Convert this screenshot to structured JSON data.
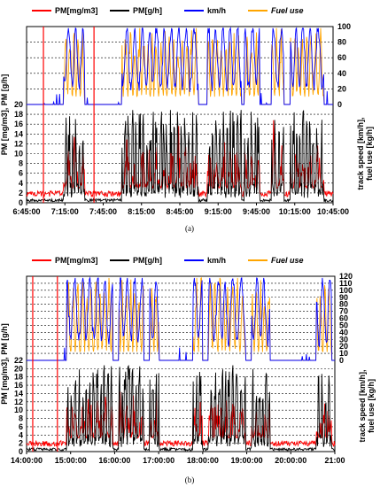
{
  "chart_data": [
    {
      "id": "a",
      "type": "line",
      "caption": "(a)",
      "legend": {
        "placement": "top",
        "entries": [
          "PM[mg/m3]",
          "PM[g/h]",
          "km/h",
          "Fuel use"
        ]
      },
      "colors": {
        "pm_mgm3": "#ff0000",
        "pm_gh": "#000000",
        "kmh": "#0000ff",
        "fuel": "#ffa500"
      },
      "ylabel_left": "PM [mg/m3], PM [g/h]",
      "ylabel_right": "track speed [km/h], fuel use [kg/h]",
      "x_ticks": [
        "6:45:00",
        "7:15:00",
        "7:45:00",
        "8:15:00",
        "8:45:00",
        "9:15:00",
        "9:45:00",
        "10:15:00",
        "10:45:00"
      ],
      "y_left_ticks": [
        "0",
        "2",
        "4",
        "6",
        "8",
        "10",
        "12",
        "14",
        "16",
        "18",
        "20"
      ],
      "y_right_ticks": [
        "0",
        "20",
        "40",
        "60",
        "80",
        "100"
      ],
      "y_left_range": [
        0,
        20
      ],
      "y_right_range": [
        0,
        100
      ],
      "grid": true,
      "seed": 11,
      "driving_windows": [
        [
          0.12,
          0.19
        ],
        [
          0.31,
          0.56
        ],
        [
          0.59,
          0.7
        ],
        [
          0.71,
          0.76
        ],
        [
          0.8,
          0.84
        ],
        [
          0.86,
          0.97
        ]
      ],
      "spikes_red": [
        0.055,
        0.22
      ]
    },
    {
      "id": "b",
      "type": "line",
      "caption": "(b)",
      "legend": {
        "placement": "top",
        "entries": [
          "PM[mg/m3]",
          "PM[g/h]",
          "km/h",
          "Fuel use"
        ]
      },
      "colors": {
        "pm_mgm3": "#ff0000",
        "pm_gh": "#000000",
        "kmh": "#0000ff",
        "fuel": "#ffa500"
      },
      "ylabel_left": "PM [mg/m3], PM [g/h]",
      "ylabel_right": "track speed [km/h], fuel use [kg/h]",
      "x_ticks": [
        "14:00:00",
        "15:00:00",
        "16:00:00",
        "17:00:00",
        "18:00:00",
        "19:00:00",
        "20:00:00",
        "21:00"
      ],
      "y_left_ticks": [
        "0",
        "2",
        "4",
        "6",
        "8",
        "10",
        "12",
        "14",
        "16",
        "18",
        "20",
        "22"
      ],
      "y_right_ticks": [
        "0",
        "10",
        "20",
        "30",
        "40",
        "50",
        "60",
        "70",
        "80",
        "90",
        "100",
        "110",
        "120"
      ],
      "y_left_range": [
        0,
        22
      ],
      "y_right_range": [
        0,
        120
      ],
      "grid": true,
      "seed": 23,
      "driving_windows": [
        [
          0.13,
          0.28
        ],
        [
          0.3,
          0.38
        ],
        [
          0.4,
          0.43
        ],
        [
          0.54,
          0.57
        ],
        [
          0.59,
          0.71
        ],
        [
          0.73,
          0.79
        ],
        [
          0.94,
          0.99
        ]
      ],
      "spikes_red": [
        0.02,
        0.1
      ]
    }
  ]
}
